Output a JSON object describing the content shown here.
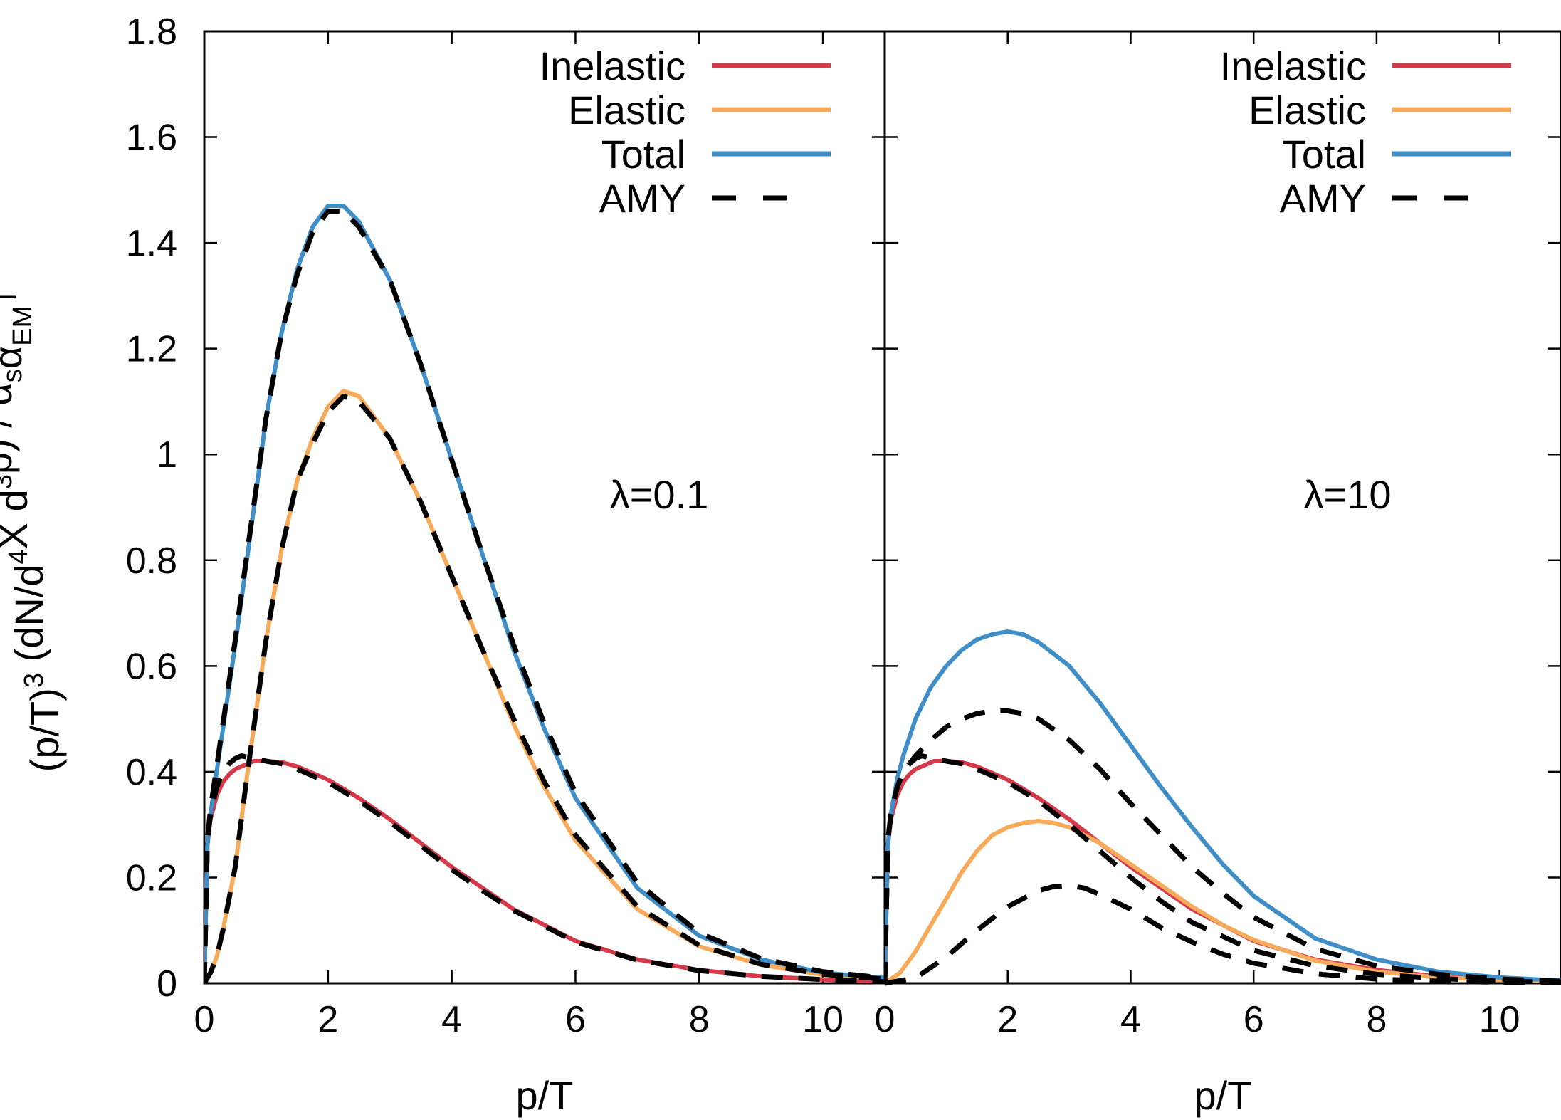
{
  "chart_data": [
    {
      "type": "line",
      "panel": "left",
      "annotation": "λ=0.1",
      "xlabel": "p/T",
      "ylabel_parts": [
        "(p/T)",
        "3",
        " (dN/d",
        "4",
        "X d",
        "3",
        "p) / α",
        "s",
        "α",
        "EM",
        "T"
      ],
      "xlim": [
        0,
        11
      ],
      "ylim": [
        0,
        1.8
      ],
      "xticks": [
        0,
        2,
        4,
        6,
        8,
        10
      ],
      "yticks": [
        "0",
        "0.2",
        "0.4",
        "0.6",
        "0.8",
        "1",
        "1.2",
        "1.4",
        "1.6",
        "1.8"
      ],
      "legend_position": "top-right",
      "series": [
        {
          "name": "Inelastic",
          "color": "#d63a4a",
          "style": "solid",
          "x": [
            0,
            0.05,
            0.1,
            0.2,
            0.3,
            0.4,
            0.5,
            0.6,
            0.8,
            1,
            1.25,
            1.5,
            2,
            2.5,
            3,
            3.5,
            4,
            4.5,
            5,
            6,
            7,
            8,
            9,
            10,
            11
          ],
          "y": [
            0,
            0.26,
            0.31,
            0.355,
            0.38,
            0.395,
            0.405,
            0.41,
            0.42,
            0.42,
            0.418,
            0.41,
            0.385,
            0.35,
            0.31,
            0.265,
            0.22,
            0.18,
            0.14,
            0.08,
            0.045,
            0.025,
            0.013,
            0.007,
            0.003
          ]
        },
        {
          "name": "Elastic",
          "color": "#f7ab5a",
          "style": "solid",
          "x": [
            0,
            0.1,
            0.2,
            0.3,
            0.5,
            0.7,
            1,
            1.25,
            1.5,
            1.75,
            2,
            2.25,
            2.5,
            3,
            3.5,
            4,
            4.5,
            5,
            5.5,
            6,
            7,
            8,
            9,
            10,
            11
          ],
          "y": [
            0,
            0.02,
            0.05,
            0.1,
            0.22,
            0.4,
            0.65,
            0.82,
            0.95,
            1.03,
            1.09,
            1.12,
            1.11,
            1.03,
            0.91,
            0.77,
            0.63,
            0.49,
            0.37,
            0.27,
            0.14,
            0.07,
            0.035,
            0.016,
            0.008
          ]
        },
        {
          "name": "Total",
          "color": "#3f8ec7",
          "style": "solid",
          "x": [
            0,
            0.05,
            0.1,
            0.2,
            0.3,
            0.5,
            0.7,
            1,
            1.25,
            1.5,
            1.75,
            2,
            2.25,
            2.5,
            3,
            3.5,
            4,
            4.5,
            5,
            5.5,
            6,
            7,
            8,
            9,
            10,
            11
          ],
          "y": [
            0,
            0.26,
            0.32,
            0.4,
            0.48,
            0.64,
            0.81,
            1.07,
            1.23,
            1.35,
            1.43,
            1.47,
            1.47,
            1.44,
            1.33,
            1.17,
            0.99,
            0.81,
            0.63,
            0.48,
            0.35,
            0.18,
            0.09,
            0.045,
            0.02,
            0.01
          ]
        },
        {
          "name": "AMY",
          "color": "#000000",
          "style": "dashed",
          "x": [
            0,
            0.05,
            0.1,
            0.2,
            0.3,
            0.4,
            0.5,
            0.6,
            0.8,
            1,
            1.25,
            1.5,
            2,
            2.5,
            3,
            3.5,
            4,
            4.5,
            5,
            6,
            7,
            8,
            9,
            10,
            11
          ],
          "y": [
            0,
            0.27,
            0.32,
            0.37,
            0.4,
            0.415,
            0.425,
            0.43,
            0.425,
            0.42,
            0.415,
            0.405,
            0.38,
            0.345,
            0.305,
            0.26,
            0.215,
            0.175,
            0.138,
            0.078,
            0.044,
            0.024,
            0.013,
            0.007,
            0.003
          ]
        },
        {
          "name": "",
          "color": "#000000",
          "style": "dashed",
          "x": [
            0,
            0.1,
            0.2,
            0.3,
            0.5,
            0.7,
            1,
            1.25,
            1.5,
            1.75,
            2,
            2.25,
            2.5,
            3,
            3.5,
            4,
            4.5,
            5,
            5.5,
            6,
            7,
            8,
            9,
            10,
            11
          ],
          "y": [
            0,
            0.02,
            0.05,
            0.1,
            0.22,
            0.4,
            0.65,
            0.82,
            0.95,
            1.02,
            1.08,
            1.11,
            1.1,
            1.03,
            0.91,
            0.77,
            0.63,
            0.5,
            0.38,
            0.28,
            0.145,
            0.072,
            0.036,
            0.017,
            0.008
          ]
        },
        {
          "name": "",
          "color": "#000000",
          "style": "dashed",
          "x": [
            0,
            0.05,
            0.1,
            0.2,
            0.3,
            0.5,
            0.7,
            1,
            1.25,
            1.5,
            1.75,
            2,
            2.25,
            2.5,
            3,
            3.5,
            4,
            4.5,
            5,
            5.5,
            6,
            7,
            8,
            9,
            10,
            11
          ],
          "y": [
            0,
            0.27,
            0.33,
            0.41,
            0.49,
            0.65,
            0.82,
            1.07,
            1.23,
            1.34,
            1.42,
            1.46,
            1.46,
            1.43,
            1.33,
            1.17,
            0.99,
            0.81,
            0.64,
            0.49,
            0.36,
            0.19,
            0.095,
            0.047,
            0.022,
            0.01
          ]
        }
      ]
    },
    {
      "type": "line",
      "panel": "right",
      "annotation": "λ=10",
      "xlabel": "p/T",
      "xlim": [
        0,
        11
      ],
      "ylim": [
        0,
        1.8
      ],
      "xticks": [
        0,
        2,
        4,
        6,
        8,
        10
      ],
      "legend_position": "top-right",
      "series": [
        {
          "name": "Inelastic",
          "color": "#d63a4a",
          "style": "solid",
          "x": [
            0,
            0.05,
            0.1,
            0.2,
            0.3,
            0.4,
            0.5,
            0.6,
            0.8,
            1,
            1.25,
            1.5,
            2,
            2.5,
            3,
            3.5,
            4,
            4.5,
            5,
            6,
            7,
            8,
            9,
            10,
            11
          ],
          "y": [
            0,
            0.26,
            0.31,
            0.355,
            0.38,
            0.395,
            0.405,
            0.41,
            0.42,
            0.42,
            0.418,
            0.41,
            0.385,
            0.35,
            0.31,
            0.265,
            0.22,
            0.18,
            0.14,
            0.08,
            0.045,
            0.025,
            0.013,
            0.007,
            0.003
          ]
        },
        {
          "name": "Elastic",
          "color": "#f7ab5a",
          "style": "solid",
          "x": [
            0,
            0.25,
            0.5,
            0.75,
            1,
            1.25,
            1.5,
            1.75,
            2,
            2.25,
            2.5,
            2.75,
            3,
            3.5,
            4,
            4.5,
            5,
            5.5,
            6,
            7,
            8,
            9,
            10,
            11
          ],
          "y": [
            0,
            0.02,
            0.06,
            0.11,
            0.16,
            0.21,
            0.25,
            0.28,
            0.295,
            0.303,
            0.307,
            0.303,
            0.295,
            0.265,
            0.225,
            0.185,
            0.145,
            0.11,
            0.082,
            0.043,
            0.022,
            0.011,
            0.006,
            0.003
          ]
        },
        {
          "name": "Total",
          "color": "#3f8ec7",
          "style": "solid",
          "x": [
            0,
            0.05,
            0.1,
            0.2,
            0.3,
            0.5,
            0.75,
            1,
            1.25,
            1.5,
            1.75,
            2,
            2.25,
            2.5,
            3,
            3.5,
            4,
            4.5,
            5,
            5.5,
            6,
            7,
            8,
            9,
            10,
            11
          ],
          "y": [
            0,
            0.26,
            0.32,
            0.385,
            0.43,
            0.5,
            0.56,
            0.6,
            0.63,
            0.65,
            0.66,
            0.665,
            0.66,
            0.645,
            0.6,
            0.53,
            0.45,
            0.37,
            0.295,
            0.225,
            0.165,
            0.085,
            0.045,
            0.022,
            0.011,
            0.005
          ]
        },
        {
          "name": "AMY",
          "color": "#000000",
          "style": "dashed",
          "x": [
            0,
            0.05,
            0.1,
            0.2,
            0.3,
            0.4,
            0.5,
            0.6,
            0.8,
            1,
            1.25,
            1.5,
            2,
            2.5,
            3,
            3.5,
            4,
            4.5,
            5,
            6,
            7,
            8,
            9,
            10,
            11
          ],
          "y": [
            0,
            0.27,
            0.32,
            0.37,
            0.4,
            0.415,
            0.425,
            0.43,
            0.425,
            0.42,
            0.415,
            0.405,
            0.38,
            0.345,
            0.3,
            0.25,
            0.2,
            0.155,
            0.115,
            0.062,
            0.033,
            0.017,
            0.009,
            0.004,
            0.002
          ]
        },
        {
          "name": "",
          "color": "#000000",
          "style": "dashed",
          "x": [
            0,
            0.5,
            1,
            1.5,
            2,
            2.5,
            2.75,
            3,
            3.25,
            3.5,
            4,
            4.5,
            5,
            5.5,
            6,
            7,
            8,
            9,
            10,
            11
          ],
          "y": [
            0,
            0.01,
            0.05,
            0.1,
            0.145,
            0.175,
            0.183,
            0.185,
            0.18,
            0.168,
            0.14,
            0.105,
            0.078,
            0.055,
            0.038,
            0.018,
            0.008,
            0.004,
            0.002,
            0.001
          ]
        },
        {
          "name": "",
          "color": "#000000",
          "style": "dashed",
          "x": [
            0,
            0.05,
            0.1,
            0.2,
            0.3,
            0.5,
            0.75,
            1,
            1.25,
            1.5,
            1.75,
            2,
            2.25,
            2.5,
            3,
            3.5,
            4,
            4.5,
            5,
            5.5,
            6,
            7,
            8,
            9,
            10,
            11
          ],
          "y": [
            0,
            0.27,
            0.32,
            0.37,
            0.4,
            0.43,
            0.46,
            0.485,
            0.5,
            0.51,
            0.515,
            0.515,
            0.51,
            0.5,
            0.46,
            0.405,
            0.34,
            0.28,
            0.22,
            0.17,
            0.125,
            0.065,
            0.033,
            0.017,
            0.008,
            0.004
          ]
        }
      ]
    }
  ]
}
